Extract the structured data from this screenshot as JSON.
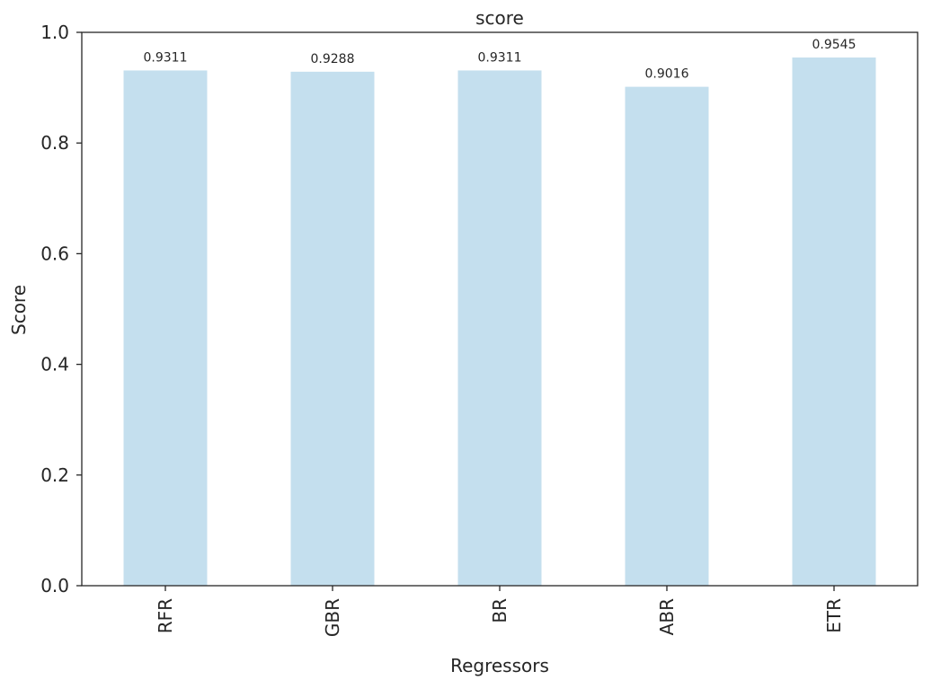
{
  "chart_data": {
    "type": "bar",
    "title": "score",
    "xlabel": "Regressors",
    "ylabel": "Score",
    "categories": [
      "RFR",
      "GBR",
      "BR",
      "ABR",
      "ETR"
    ],
    "values": [
      0.9311,
      0.9288,
      0.9311,
      0.9016,
      0.9545
    ],
    "data_labels": [
      "0.9311",
      "0.9288",
      "0.9311",
      "0.9016",
      "0.9545"
    ],
    "ylim": [
      0,
      1.0
    ],
    "yticks": [
      0.0,
      0.2,
      0.4,
      0.6,
      0.8,
      1.0
    ],
    "ytick_labels": [
      "0.0",
      "0.2",
      "0.4",
      "0.6",
      "0.8",
      "1.0"
    ],
    "bar_color": "#c4dfee",
    "grid": false,
    "legend": "none"
  }
}
